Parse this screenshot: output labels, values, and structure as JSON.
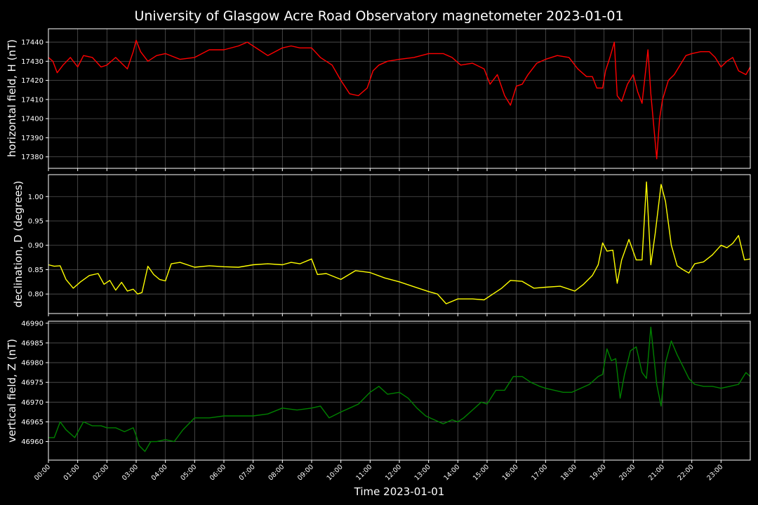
{
  "title": "University of Glasgow Acre Road Observatory magnetometer 2023-01-01",
  "xlabel": "Time 2023-01-01",
  "x_ticks": [
    "00:00",
    "01:00",
    "02:00",
    "03:00",
    "04:00",
    "05:00",
    "06:00",
    "07:00",
    "08:00",
    "09:00",
    "10:00",
    "11:00",
    "12:00",
    "13:00",
    "14:00",
    "15:00",
    "16:00",
    "17:00",
    "18:00",
    "19:00",
    "20:00",
    "21:00",
    "22:00",
    "23:00"
  ],
  "chart_data": [
    {
      "type": "line",
      "ylabel": "horizontal field, H (nT)",
      "color": "#ff0000",
      "xlim": [
        0,
        24
      ],
      "ylim": [
        17374,
        17447
      ],
      "y_ticks": [
        "17380",
        "17390",
        "17400",
        "17410",
        "17420",
        "17430",
        "17440"
      ],
      "y_tick_values": [
        17380,
        17390,
        17400,
        17410,
        17420,
        17430,
        17440
      ],
      "x": [
        0,
        0.15,
        0.3,
        0.5,
        0.75,
        1.0,
        1.2,
        1.5,
        1.8,
        2.0,
        2.3,
        2.7,
        2.9,
        3.0,
        3.15,
        3.4,
        3.7,
        4.0,
        4.5,
        5.0,
        5.5,
        6.0,
        6.5,
        6.8,
        7.2,
        7.5,
        8.0,
        8.3,
        8.6,
        9.0,
        9.3,
        9.7,
        10.0,
        10.3,
        10.6,
        10.9,
        11.1,
        11.3,
        11.6,
        12.0,
        12.5,
        13.0,
        13.5,
        13.8,
        14.1,
        14.5,
        14.9,
        15.1,
        15.35,
        15.6,
        15.8,
        16.0,
        16.2,
        16.4,
        16.7,
        17.0,
        17.4,
        17.8,
        18.1,
        18.4,
        18.6,
        18.75,
        18.95,
        19.05,
        19.2,
        19.35,
        19.45,
        19.6,
        19.8,
        20.0,
        20.15,
        20.3,
        20.5,
        20.6,
        20.7,
        20.8,
        20.9,
        21.0,
        21.2,
        21.4,
        21.6,
        21.8,
        22.0,
        22.3,
        22.6,
        22.8,
        23.0,
        23.2,
        23.4,
        23.6,
        23.85,
        24.0
      ],
      "y": [
        17432,
        17430,
        17424,
        17428,
        17432,
        17427,
        17433,
        17432,
        17427,
        17428,
        17432,
        17426,
        17435,
        17441,
        17435,
        17430,
        17433,
        17434,
        17431,
        17432,
        17436,
        17436,
        17438,
        17440,
        17436,
        17433,
        17437,
        17438,
        17437,
        17437,
        17432,
        17428,
        17420,
        17413,
        17412,
        17416,
        17425,
        17428,
        17430,
        17431,
        17432,
        17434,
        17434,
        17432,
        17428,
        17429,
        17426,
        17418,
        17423,
        17412,
        17407,
        17417,
        17418,
        17423,
        17429,
        17431,
        17433,
        17432,
        17426,
        17422,
        17422,
        17416,
        17416,
        17425,
        17432,
        17440,
        17412,
        17409,
        17418,
        17423,
        17414,
        17408,
        17436,
        17413,
        17396,
        17379,
        17400,
        17410,
        17420,
        17423,
        17428,
        17433,
        17434,
        17435,
        17435,
        17432,
        17427,
        17430,
        17432,
        17425,
        17423,
        17427
      ]
    },
    {
      "type": "line",
      "ylabel": "declination, D (degrees)",
      "color": "#ffff00",
      "xlim": [
        0,
        24
      ],
      "ylim": [
        0.76,
        1.045
      ],
      "y_ticks": [
        "0.80",
        "0.85",
        "0.90",
        "0.95",
        "1.00"
      ],
      "y_tick_values": [
        0.8,
        0.85,
        0.9,
        0.95,
        1.0
      ],
      "x": [
        0,
        0.2,
        0.4,
        0.6,
        0.85,
        1.1,
        1.4,
        1.7,
        1.9,
        2.1,
        2.3,
        2.5,
        2.7,
        2.9,
        3.05,
        3.2,
        3.4,
        3.6,
        3.8,
        4.0,
        4.2,
        4.5,
        5.0,
        5.5,
        6.0,
        6.5,
        7.0,
        7.5,
        8.0,
        8.3,
        8.6,
        9.0,
        9.2,
        9.5,
        10.0,
        10.5,
        11.0,
        11.5,
        12.0,
        12.5,
        13.0,
        13.3,
        13.6,
        14.0,
        14.5,
        14.9,
        15.2,
        15.5,
        15.8,
        16.2,
        16.6,
        17.0,
        17.5,
        18.0,
        18.3,
        18.6,
        18.8,
        18.95,
        19.1,
        19.3,
        19.45,
        19.6,
        19.85,
        20.1,
        20.3,
        20.45,
        20.6,
        20.75,
        20.95,
        21.1,
        21.3,
        21.5,
        21.7,
        21.9,
        22.1,
        22.4,
        22.7,
        23.0,
        23.2,
        23.4,
        23.6,
        23.8,
        24.0
      ],
      "y": [
        0.86,
        0.857,
        0.858,
        0.83,
        0.812,
        0.825,
        0.838,
        0.842,
        0.82,
        0.828,
        0.808,
        0.824,
        0.806,
        0.81,
        0.8,
        0.803,
        0.857,
        0.84,
        0.83,
        0.827,
        0.862,
        0.865,
        0.855,
        0.858,
        0.856,
        0.855,
        0.86,
        0.862,
        0.86,
        0.865,
        0.862,
        0.872,
        0.84,
        0.842,
        0.83,
        0.848,
        0.844,
        0.833,
        0.825,
        0.815,
        0.805,
        0.8,
        0.78,
        0.79,
        0.79,
        0.788,
        0.8,
        0.812,
        0.828,
        0.826,
        0.812,
        0.814,
        0.816,
        0.806,
        0.82,
        0.838,
        0.86,
        0.905,
        0.888,
        0.89,
        0.822,
        0.87,
        0.912,
        0.87,
        0.87,
        1.03,
        0.86,
        0.925,
        1.025,
        0.99,
        0.9,
        0.858,
        0.85,
        0.843,
        0.862,
        0.866,
        0.88,
        0.9,
        0.895,
        0.904,
        0.92,
        0.87,
        0.872
      ]
    },
    {
      "type": "line",
      "ylabel": "vertical field, Z (nT)",
      "color": "#008000",
      "xlim": [
        0,
        24
      ],
      "ylim": [
        46955.3,
        46990.5
      ],
      "y_ticks": [
        "46960",
        "46965",
        "46970",
        "46975",
        "46980",
        "46985",
        "46990"
      ],
      "y_tick_values": [
        46960,
        46965,
        46970,
        46975,
        46980,
        46985,
        46990
      ],
      "x": [
        0,
        0.2,
        0.4,
        0.6,
        0.9,
        1.2,
        1.5,
        1.8,
        2.0,
        2.3,
        2.6,
        2.9,
        3.0,
        3.1,
        3.3,
        3.5,
        3.7,
        4.0,
        4.3,
        4.6,
        5.0,
        5.5,
        6.0,
        6.5,
        7.0,
        7.5,
        8.0,
        8.5,
        9.0,
        9.3,
        9.6,
        10.0,
        10.3,
        10.6,
        11.0,
        11.3,
        11.6,
        12.0,
        12.3,
        12.6,
        12.9,
        13.2,
        13.5,
        13.8,
        14.0,
        14.2,
        14.5,
        14.8,
        15.0,
        15.3,
        15.6,
        15.9,
        16.2,
        16.5,
        16.8,
        17.0,
        17.3,
        17.6,
        17.9,
        18.2,
        18.5,
        18.8,
        18.95,
        19.1,
        19.25,
        19.4,
        19.55,
        19.7,
        19.9,
        20.1,
        20.3,
        20.45,
        20.6,
        20.8,
        20.95,
        21.1,
        21.3,
        21.5,
        21.7,
        21.9,
        22.1,
        22.4,
        22.7,
        23.0,
        23.3,
        23.6,
        23.85,
        24.0
      ],
      "y": [
        46961,
        46961,
        46965,
        46963,
        46961,
        46965,
        46964,
        46964,
        46963.5,
        46963.5,
        46962.5,
        46963.5,
        46961.5,
        46959,
        46957.5,
        46960,
        46960,
        46960.5,
        46960,
        46963,
        46966,
        46966,
        46966.5,
        46966.5,
        46966.5,
        46967,
        46968.5,
        46968,
        46968.5,
        46969,
        46966,
        46967.5,
        46968.5,
        46969.5,
        46972.5,
        46974,
        46972,
        46972.5,
        46971,
        46968.5,
        46966.5,
        46965.5,
        46964.5,
        46965.5,
        46965,
        46966,
        46968,
        46970,
        46969.5,
        46973,
        46973,
        46976.5,
        46976.5,
        46975,
        46974,
        46973.5,
        46973,
        46972.5,
        46972.5,
        46973.5,
        46974.5,
        46976.5,
        46977,
        46983.5,
        46980.5,
        46981,
        46971,
        46977,
        46983,
        46984,
        46977.5,
        46976,
        46989,
        46974.5,
        46969,
        46980,
        46985.5,
        46982,
        46979,
        46976,
        46974.5,
        46974,
        46974,
        46973.5,
        46974,
        46974.5,
        46977.5,
        46976.5
      ]
    }
  ]
}
